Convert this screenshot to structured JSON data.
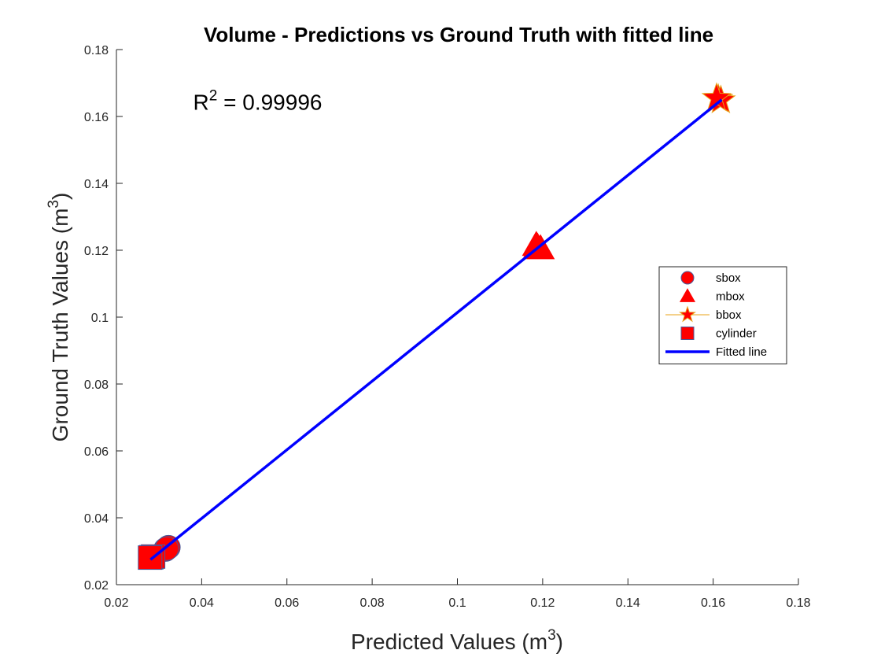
{
  "chart_data": {
    "type": "scatter",
    "title": "Volume - Predictions vs Ground Truth with fitted line",
    "xlabel": {
      "text": "Predicted Values (m",
      "sup": "3",
      "close": ")"
    },
    "ylabel": {
      "text": "Ground Truth Values (m",
      "sup": "3",
      "close": ")"
    },
    "xlim": [
      0.02,
      0.18
    ],
    "ylim": [
      0.02,
      0.18
    ],
    "xticks": [
      0.02,
      0.04,
      0.06,
      0.08,
      0.1,
      0.12,
      0.14,
      0.16,
      0.18
    ],
    "yticks": [
      0.02,
      0.04,
      0.06,
      0.08,
      0.1,
      0.12,
      0.14,
      0.16,
      0.18
    ],
    "xtick_labels": [
      "0.02",
      "0.04",
      "0.06",
      "0.08",
      "0.1",
      "0.12",
      "0.14",
      "0.16",
      "0.18"
    ],
    "ytick_labels": [
      "0.02",
      "0.04",
      "0.06",
      "0.08",
      "0.1",
      "0.12",
      "0.14",
      "0.16",
      "0.18"
    ],
    "grid": false,
    "annotation": {
      "prefix": "R",
      "sup": "2",
      "suffix": " = 0.99996",
      "x": 0.038,
      "y": 0.162
    },
    "legend_position": "right",
    "series": [
      {
        "name": "sbox",
        "marker": "circle",
        "fill": "#ff0000",
        "edge": "#4a5a9a",
        "points": [
          [
            0.0315,
            0.0305
          ],
          [
            0.0322,
            0.0312
          ],
          [
            0.0318,
            0.0308
          ]
        ]
      },
      {
        "name": "mbox",
        "marker": "triangle",
        "fill": "#ff0000",
        "edge": "#ff0000",
        "points": [
          [
            0.1185,
            0.1215
          ],
          [
            0.1195,
            0.1205
          ],
          [
            0.1188,
            0.121
          ]
        ]
      },
      {
        "name": "bbox",
        "marker": "star",
        "fill": "#ff0000",
        "edge": "#e8a317",
        "points": [
          [
            0.1612,
            0.1652
          ],
          [
            0.1618,
            0.1648
          ],
          [
            0.1608,
            0.1655
          ]
        ]
      },
      {
        "name": "cylinder",
        "marker": "square",
        "fill": "#ff0000",
        "edge": "#4a5a9a",
        "points": [
          [
            0.0282,
            0.0282
          ],
          [
            0.0286,
            0.0284
          ],
          [
            0.0279,
            0.0281
          ]
        ]
      },
      {
        "name": "Fitted line",
        "marker": "line",
        "stroke": "#0000ff",
        "points": [
          [
            0.028,
            0.0275
          ],
          [
            0.162,
            0.165
          ]
        ]
      }
    ]
  }
}
